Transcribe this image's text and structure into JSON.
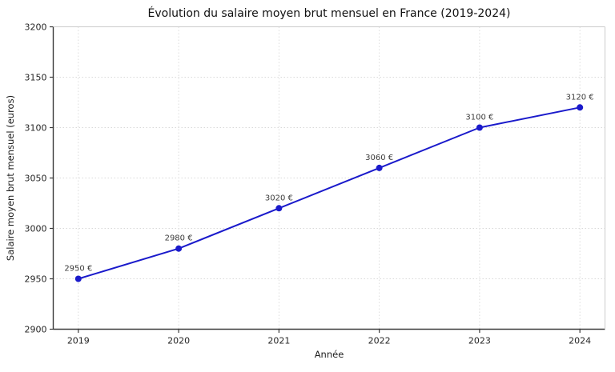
{
  "page": {
    "background": "#ffffff"
  },
  "chart_data": {
    "type": "line",
    "title": "Évolution du salaire moyen brut mensuel en France (2019-2024)",
    "xlabel": "Année",
    "ylabel": "Salaire moyen brut mensuel (euros)",
    "x": [
      2019,
      2020,
      2021,
      2022,
      2023,
      2024
    ],
    "series": [
      {
        "name": "Salaire moyen brut mensuel",
        "values": [
          2950,
          2980,
          3020,
          3060,
          3100,
          3120
        ]
      }
    ],
    "point_labels": [
      "2950 €",
      "2980 €",
      "3020 €",
      "3060 €",
      "3100 €",
      "3120 €"
    ],
    "xticks": [
      "2019",
      "2020",
      "2021",
      "2022",
      "2023",
      "2024"
    ],
    "yticks": [
      2900,
      2950,
      3000,
      3050,
      3100,
      3150,
      3200
    ],
    "xlim": [
      2018.75,
      2024.25
    ],
    "ylim": [
      2900,
      3200
    ],
    "grid": true,
    "legend": "none",
    "colors": {
      "line": "#1a1acb",
      "marker": "#1a1acb",
      "grid": "#d9d9d9",
      "dark_spine": "#3a3a3a",
      "light_spine": "#cccccc",
      "tick": "#3a3a3a"
    }
  }
}
